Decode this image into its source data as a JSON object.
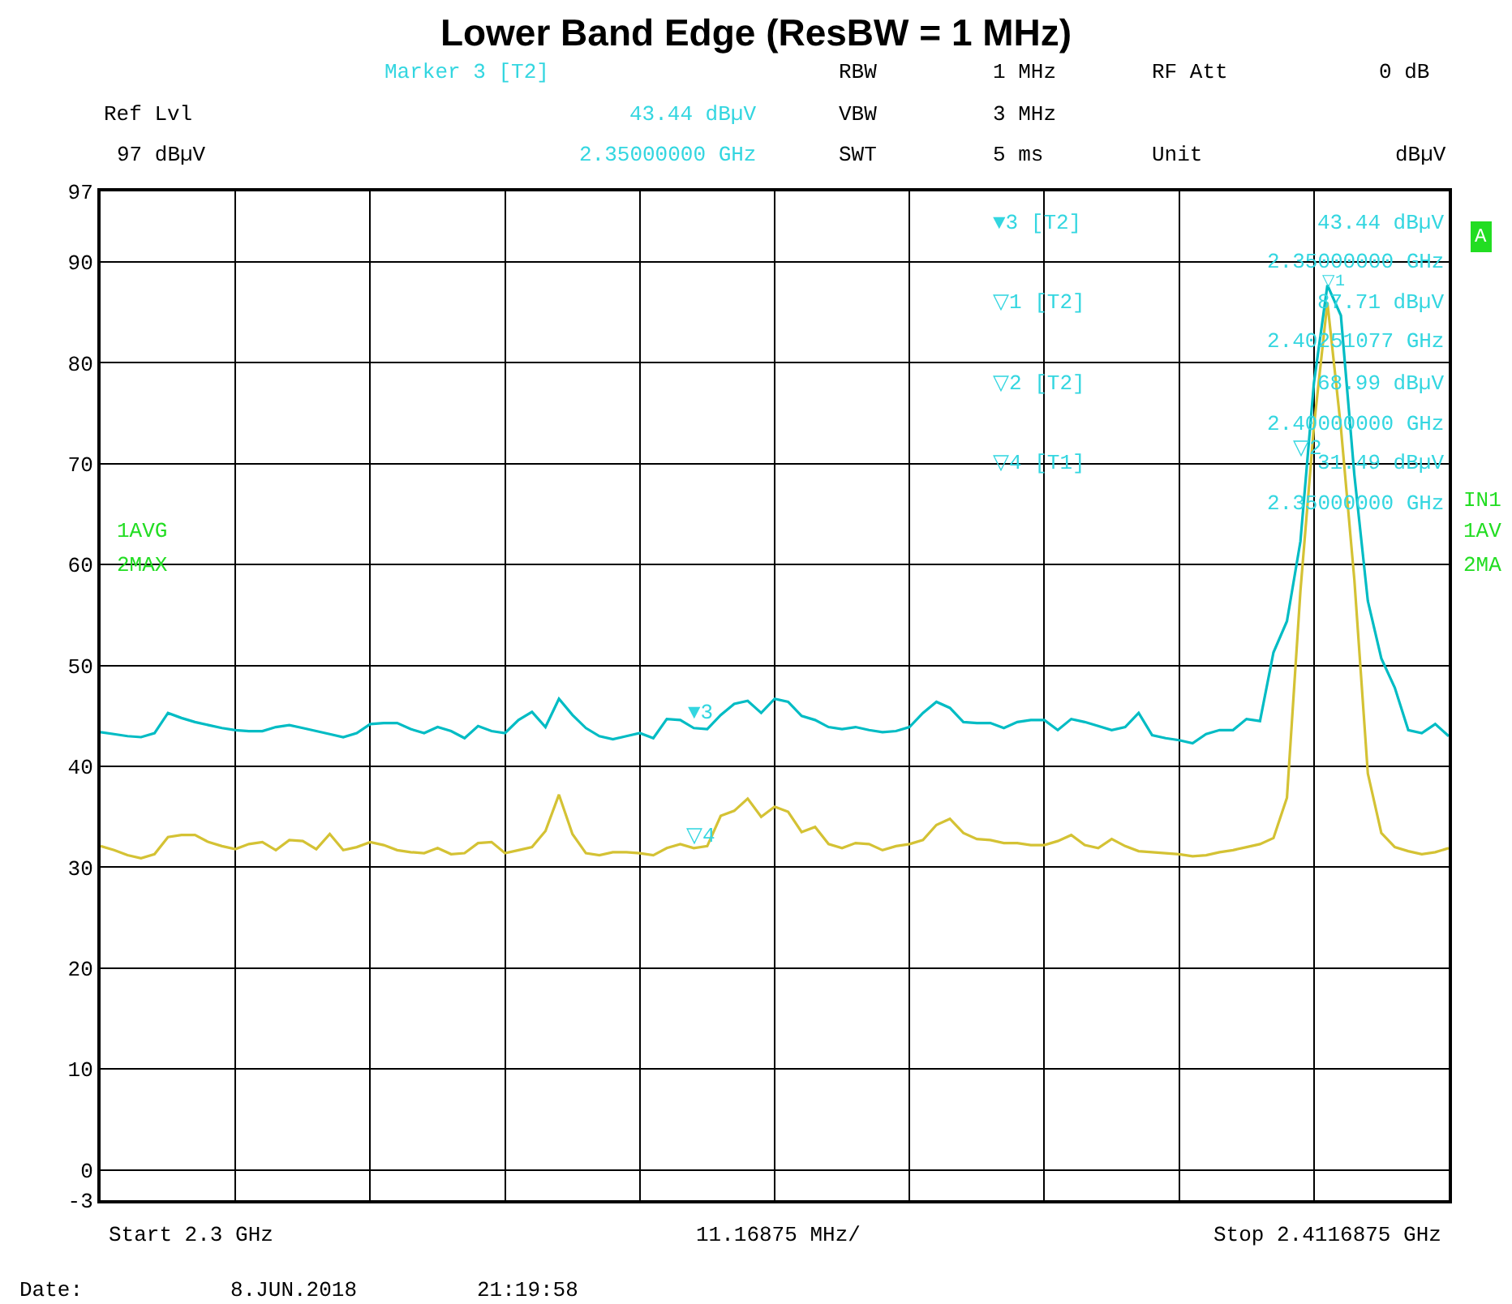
{
  "chart_data": {
    "type": "line",
    "title": "Lower Band Edge (ResBW = 1 MHz)",
    "categories": [
      null,
      null,
      null,
      null,
      null,
      null,
      null,
      null,
      null,
      null,
      null,
      null,
      null,
      null,
      null,
      null,
      null,
      null,
      null,
      null,
      null,
      null,
      null,
      null,
      null,
      null,
      null,
      null,
      null,
      null,
      null,
      null,
      null,
      null,
      null,
      null,
      null,
      null,
      null,
      null,
      null,
      null,
      null,
      null,
      null,
      null,
      null,
      null,
      null,
      null,
      null,
      null,
      null,
      null,
      null,
      null,
      null,
      null,
      null,
      null,
      null,
      null,
      null,
      null,
      null,
      null,
      null,
      null,
      null,
      null,
      null,
      null,
      null,
      null,
      null,
      null,
      null,
      null,
      null,
      null,
      null,
      null,
      null,
      null,
      null,
      null,
      null,
      null,
      null,
      null,
      null,
      null,
      null,
      null,
      null,
      null,
      null,
      null,
      null,
      null,
      null
    ],
    "ylim": [
      -3,
      97
    ],
    "yticks": [
      -3,
      0,
      10,
      20,
      30,
      40,
      50,
      60,
      70,
      80,
      90,
      97
    ],
    "tick_labels": "y",
    "grid": true,
    "marker": "none",
    "line_style": "solid",
    "series": [
      {
        "color": "#d4c234",
        "values": [
          32.1,
          31.7,
          31.2,
          30.9,
          31.3,
          33.0,
          33.2,
          33.2,
          32.5,
          32.1,
          31.8,
          32.3,
          32.5,
          31.7,
          32.7,
          32.6,
          31.8,
          33.3,
          31.7,
          32.0,
          32.5,
          32.2,
          31.7,
          31.5,
          31.4,
          31.9,
          31.3,
          31.4,
          32.4,
          32.5,
          31.4,
          31.7,
          32.0,
          33.6,
          37.2,
          33.3,
          31.4,
          31.2,
          31.5,
          31.5,
          31.4,
          31.2,
          31.9,
          32.3,
          31.9,
          32.1,
          35.1,
          35.6,
          36.8,
          35.0,
          36.0,
          35.5,
          33.5,
          34.0,
          32.3,
          31.9,
          32.4,
          32.3,
          31.7,
          32.1,
          32.3,
          32.7,
          34.2,
          34.8,
          33.4,
          32.8,
          32.7,
          32.4,
          32.4,
          32.2,
          32.2,
          32.6,
          33.2,
          32.2,
          31.9,
          32.8,
          32.1,
          31.6,
          31.5,
          31.4,
          31.3,
          31.1,
          31.2,
          31.5,
          31.7,
          32.0,
          32.3,
          32.9,
          36.9,
          57.4,
          73.7,
          86.0,
          73.6,
          58.5,
          39.3,
          33.4,
          32.0,
          31.6,
          31.3,
          31.5,
          31.9
        ]
      },
      {
        "color": "#00bcc4",
        "values": [
          43.4,
          43.2,
          43.0,
          42.9,
          43.3,
          45.3,
          44.8,
          44.4,
          44.1,
          43.8,
          43.6,
          43.5,
          43.5,
          43.9,
          44.1,
          43.8,
          43.5,
          43.2,
          42.9,
          43.3,
          44.2,
          44.3,
          44.3,
          43.7,
          43.3,
          43.9,
          43.5,
          42.8,
          44.0,
          43.5,
          43.3,
          44.6,
          45.4,
          43.9,
          46.7,
          45.1,
          43.8,
          43.0,
          42.7,
          43.0,
          43.3,
          42.8,
          44.7,
          44.6,
          43.8,
          43.7,
          45.1,
          46.2,
          46.5,
          45.3,
          46.7,
          46.4,
          45.0,
          44.6,
          43.9,
          43.7,
          43.9,
          43.6,
          43.4,
          43.5,
          43.9,
          45.3,
          46.4,
          45.8,
          44.4,
          44.3,
          44.3,
          43.8,
          44.4,
          44.6,
          44.6,
          43.6,
          44.7,
          44.4,
          44.0,
          43.6,
          43.9,
          45.3,
          43.1,
          42.8,
          42.6,
          42.3,
          43.2,
          43.6,
          43.6,
          44.7,
          44.5,
          51.3,
          54.4,
          62.3,
          78.0,
          87.7,
          84.7,
          68.9,
          56.4,
          50.7,
          47.8,
          43.6,
          43.3,
          44.2,
          43.0
        ]
      }
    ],
    "annotations": [
      "Marker 3 [T2]",
      "RBW",
      "1 MHz",
      "RF Att",
      "0 dB",
      "Ref Lvl",
      "43.44 dBµV",
      "VBW",
      "3 MHz",
      "97 dBµV",
      "2.35000000 GHz",
      "SWT",
      "5 ms",
      "Unit",
      "dBµV",
      "▼3 [T2]",
      "43.44 dBµV",
      "2.35000000 GHz",
      "▽1 [T2]",
      "87.71 dBµV",
      "2.40251077 GHz",
      "▽2 [T2]",
      "68.99 dBµV",
      "2.40000000 GHz",
      "▽4 [T1]",
      "31.49 dBµV",
      "2.35000000 GHz",
      "1AVG",
      "2MAX",
      "A",
      "IN1",
      "1AV",
      "2MA",
      "Start 2.3 GHz",
      "11.16875 MHz/",
      "Stop 2.4116875 GHz",
      "Date:",
      "8.JUN.2018",
      "21:19:58",
      "▼3",
      "▽4",
      "▽1",
      "▽2"
    ]
  }
}
